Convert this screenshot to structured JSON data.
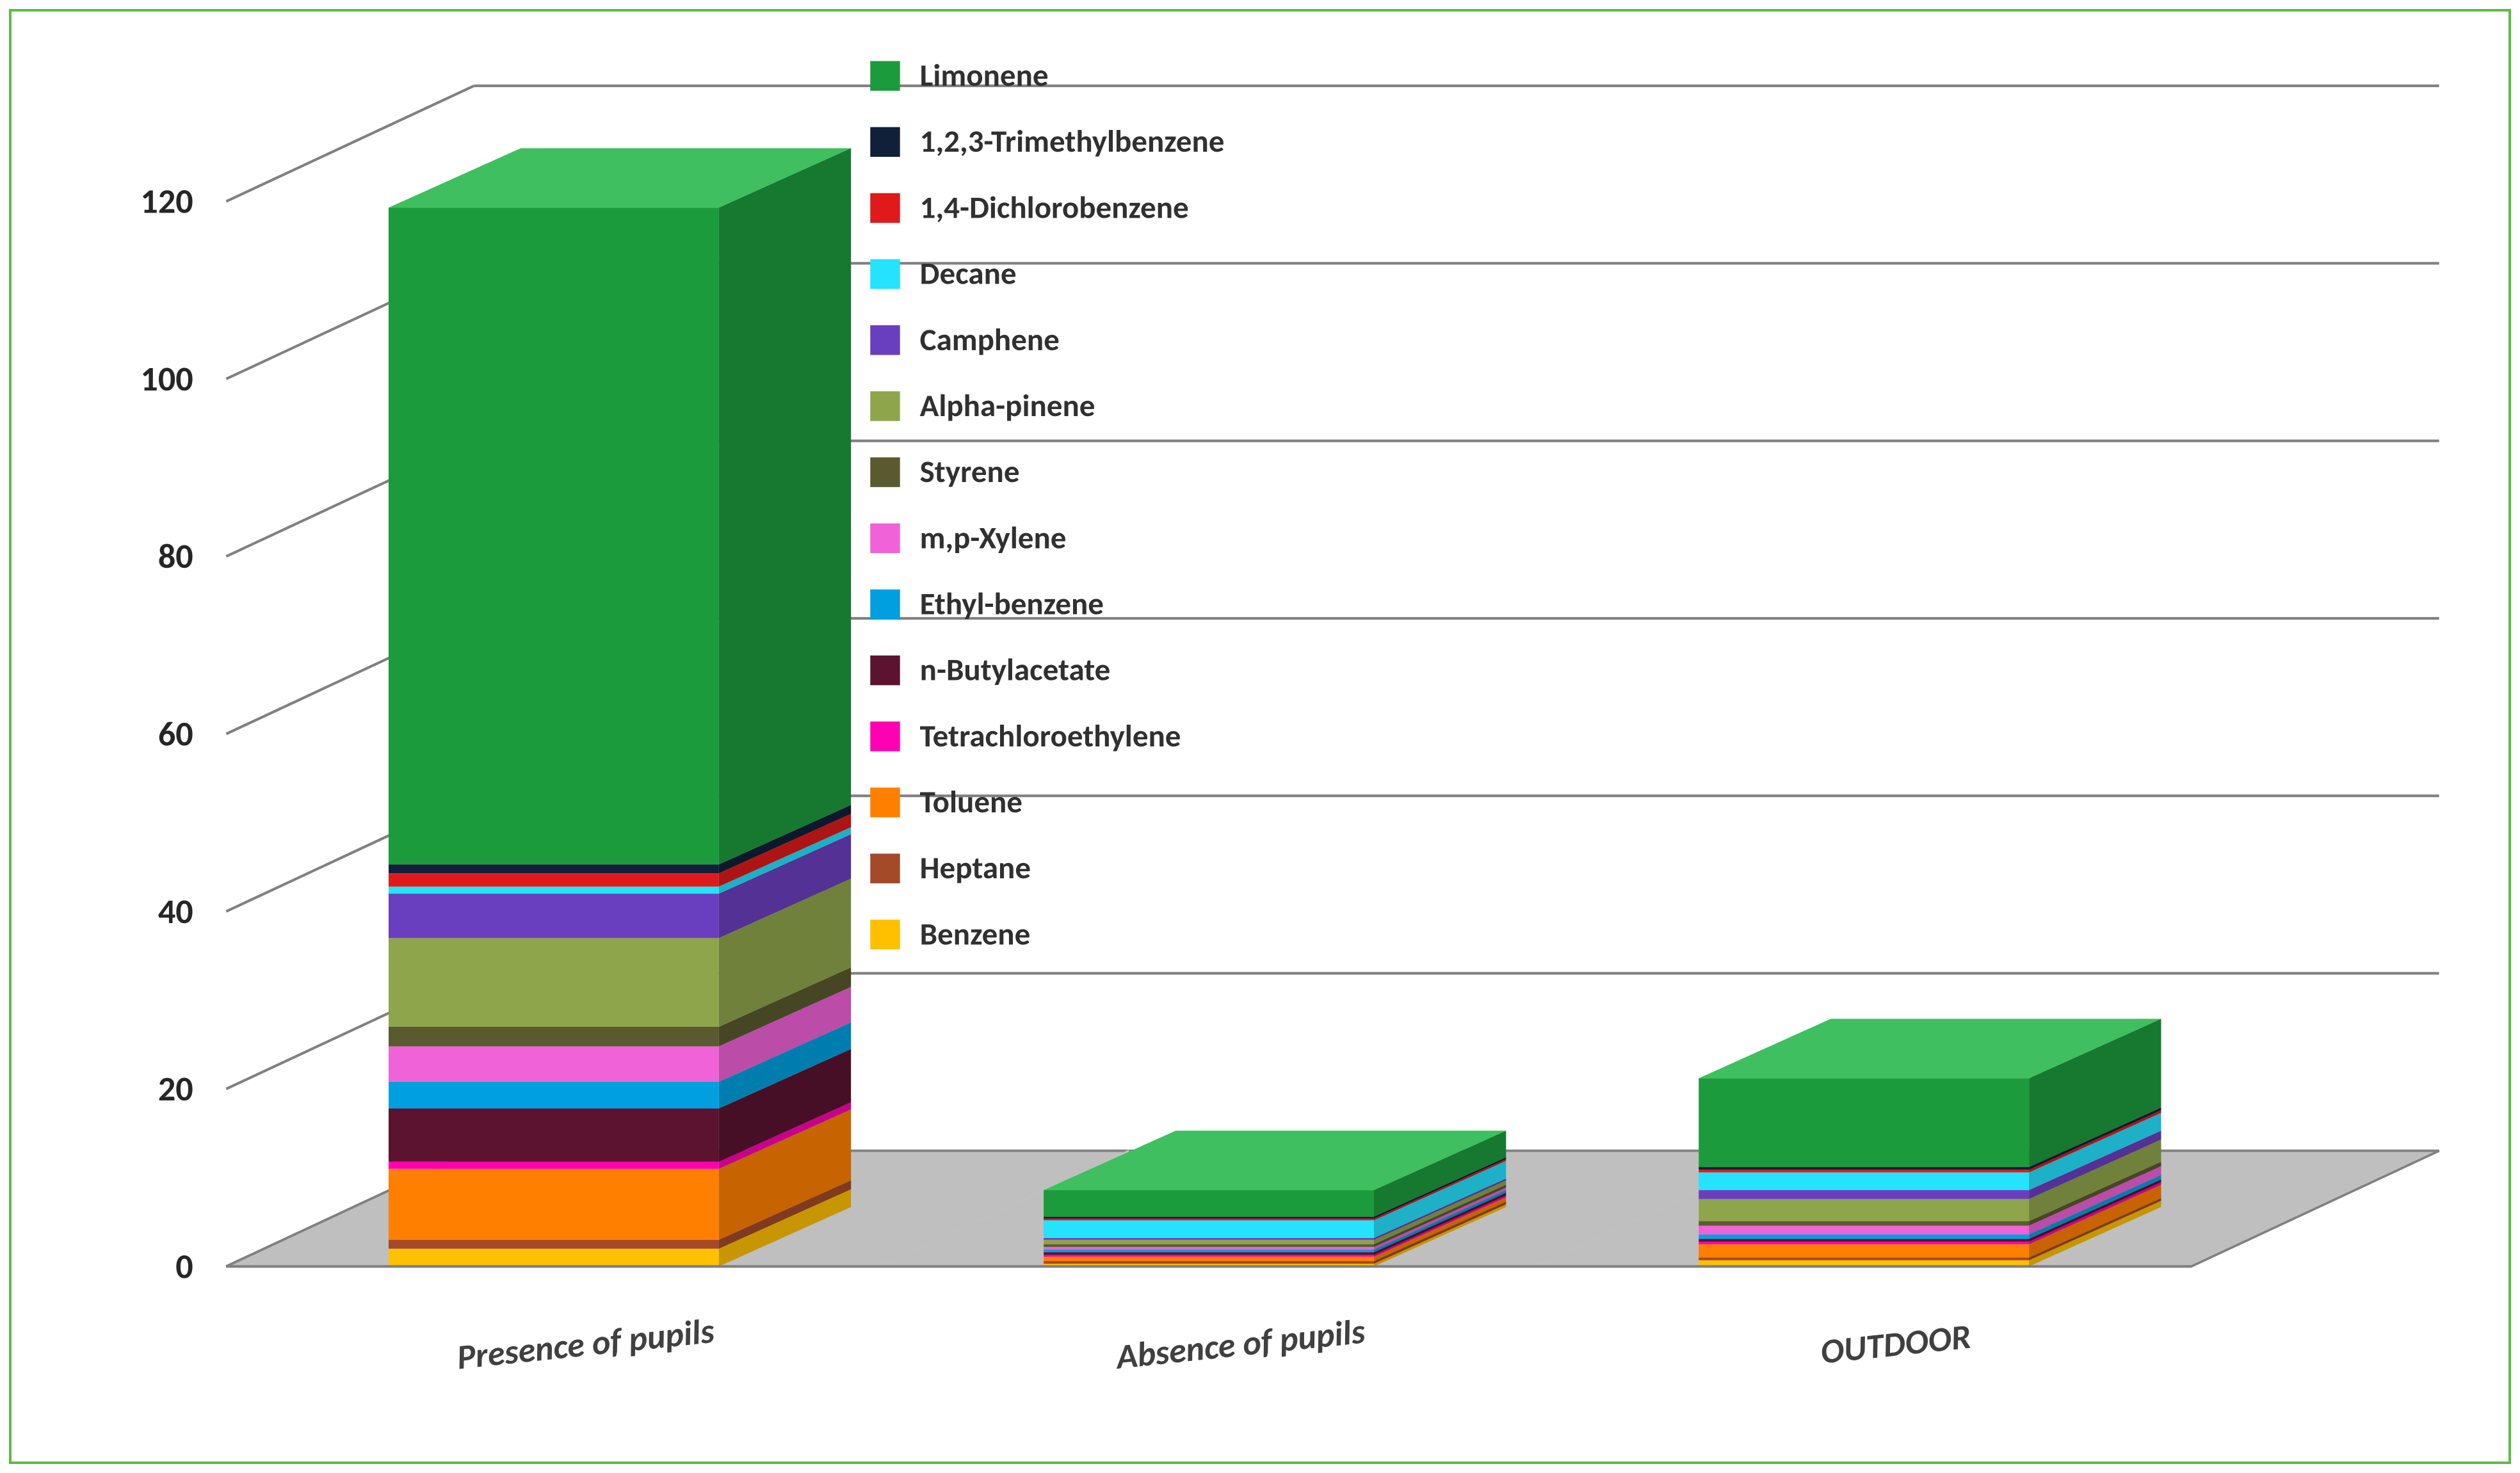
{
  "chart": {
    "type": "3d-stacked-bar",
    "frame_color": "#5fbb46",
    "background_color": "#ffffff",
    "grid_color": "#808080",
    "vgrid_color": "#c0c0c0",
    "floor_color": "#bfbfbf",
    "axis_fontsize": 21,
    "cat_fontsize": 21,
    "legend_fontsize": 19,
    "legend_sq": 18,
    "ylim": [
      0,
      120
    ],
    "ytick_step": 20,
    "categories": [
      "Presence of pupils",
      "Absence of pupils",
      "OUTDOOR"
    ],
    "series": [
      {
        "name": "Benzene",
        "color": "#ffc000",
        "values": [
          2.0,
          0.3,
          0.7
        ]
      },
      {
        "name": "Heptane",
        "color": "#a44a28",
        "values": [
          1.0,
          0.3,
          0.3
        ]
      },
      {
        "name": "Toluene",
        "color": "#ff7f00",
        "values": [
          8.0,
          0.5,
          1.5
        ]
      },
      {
        "name": "Tetrachloroethylene",
        "color": "#ff00b3",
        "values": [
          0.8,
          0.2,
          0.3
        ]
      },
      {
        "name": "n-Butylacetate",
        "color": "#5b1330",
        "values": [
          6.0,
          0.3,
          0.3
        ]
      },
      {
        "name": "Ethyl-benzene",
        "color": "#00a0e0",
        "values": [
          3.0,
          0.3,
          0.5
        ]
      },
      {
        "name": " m,p-Xylene",
        "color": "#f062d8",
        "values": [
          4.0,
          0.3,
          1.0
        ]
      },
      {
        "name": "Styrene",
        "color": "#5a5a30",
        "values": [
          2.2,
          0.3,
          0.5
        ]
      },
      {
        "name": "Alpha-pinene",
        "color": "#8fa54b",
        "values": [
          10.0,
          0.5,
          2.5
        ]
      },
      {
        "name": "Camphene",
        "color": "#6a3fbf",
        "values": [
          5.0,
          0.2,
          1.0
        ]
      },
      {
        "name": "Decane",
        "color": "#25e2ff",
        "values": [
          0.8,
          2.0,
          2.0
        ]
      },
      {
        "name": "1,4-Dichlorobenzene",
        "color": "#e01a1a",
        "values": [
          1.5,
          0.2,
          0.3
        ]
      },
      {
        "name": "1,2,3-Trimethylbenzene",
        "color": "#102038",
        "values": [
          1.0,
          0.2,
          0.3
        ]
      },
      {
        "name": "Limonene",
        "color": "#1c9b3c",
        "values": [
          74.0,
          3.0,
          10.0
        ]
      }
    ],
    "series_top_face": {
      "Limonene": "#3fbf5f"
    },
    "legend_order": [
      "Limonene",
      "1,2,3-Trimethylbenzene",
      "1,4-Dichlorobenzene",
      "Decane",
      "Camphene",
      "Alpha-pinene",
      "Styrene",
      " m,p-Xylene",
      "Ethyl-benzene",
      "n-Butylacetate",
      "Tetrachloroethylene",
      "Toluene",
      "Heptane",
      "Benzene"
    ]
  }
}
